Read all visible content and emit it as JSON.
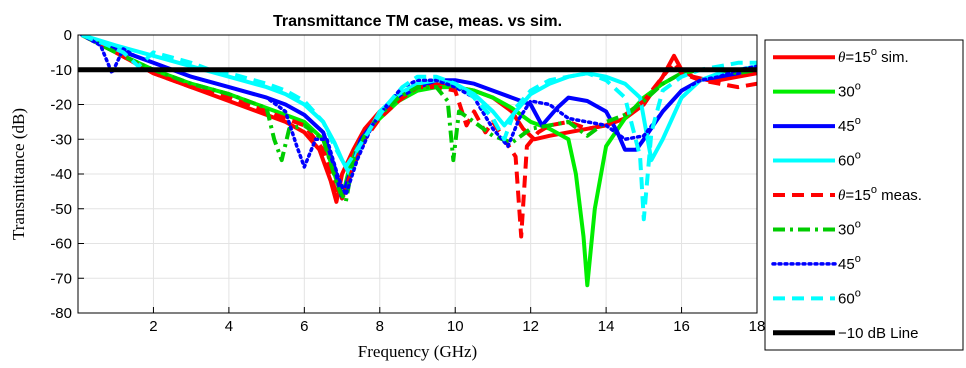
{
  "chart_data": {
    "type": "line",
    "title": "Transmittance TM case, meas. vs sim.",
    "xlabel": "Frequency (GHz)",
    "ylabel": "Transmittance (dB)",
    "xlim": [
      0,
      18
    ],
    "ylim": [
      -80,
      0
    ],
    "xticks": [
      2,
      4,
      6,
      8,
      10,
      12,
      14,
      16,
      18
    ],
    "yticks": [
      0,
      -10,
      -20,
      -30,
      -40,
      -50,
      -60,
      -70,
      -80
    ],
    "grid": true,
    "legend_position": "outside-right",
    "series": [
      {
        "name": "θ=15° sim.",
        "legend_prefix": "θ",
        "legend_text": "=15",
        "legend_sup": "o",
        "legend_suffix": " sim.",
        "color": "#ff0000",
        "style": "solid",
        "x": [
          0.1,
          1,
          2,
          3,
          4,
          5,
          5.5,
          6,
          6.4,
          6.7,
          6.85,
          7.0,
          7.3,
          7.6,
          8,
          8.5,
          9,
          9.5,
          10,
          10.5,
          11,
          11.5,
          11.8,
          12.1,
          12.5,
          13,
          13.5,
          14,
          14.5,
          15,
          15.5,
          15.8,
          16,
          16.3,
          16.7,
          17,
          17.5,
          18
        ],
        "y": [
          0,
          -5,
          -11,
          -15,
          -19,
          -23,
          -25,
          -28,
          -33,
          -42,
          -48,
          -40,
          -33,
          -27,
          -22,
          -18,
          -15,
          -14,
          -15,
          -16,
          -18,
          -22,
          -27,
          -30,
          -29,
          -28,
          -27,
          -26,
          -24,
          -20,
          -12,
          -6,
          -10,
          -12,
          -13,
          -13,
          -12,
          -11
        ]
      },
      {
        "name": "30° sim.",
        "legend_prefix": "",
        "legend_text": "30",
        "legend_sup": "o",
        "legend_suffix": "",
        "color": "#00ee00",
        "style": "solid",
        "x": [
          0.1,
          1,
          2,
          3,
          4,
          5,
          5.5,
          6,
          6.5,
          6.8,
          7.0,
          7.2,
          7.5,
          8,
          8.5,
          9,
          9.5,
          10,
          10.5,
          11,
          11.5,
          12,
          12.5,
          13,
          13.2,
          13.4,
          13.5,
          13.7,
          14,
          14.5,
          15,
          15.5,
          16,
          16.5,
          17,
          17.5,
          18
        ],
        "y": [
          0,
          -5,
          -10,
          -14,
          -17,
          -21,
          -23,
          -25,
          -30,
          -40,
          -47,
          -38,
          -30,
          -24,
          -19,
          -16,
          -15,
          -15,
          -16,
          -18,
          -21,
          -25,
          -27,
          -30,
          -40,
          -58,
          -72,
          -50,
          -32,
          -24,
          -18,
          -14,
          -11,
          -10,
          -10,
          -10,
          -10
        ]
      },
      {
        "name": "45° sim.",
        "legend_prefix": "",
        "legend_text": "45",
        "legend_sup": "o",
        "legend_suffix": "",
        "color": "#0000ff",
        "style": "solid",
        "x": [
          0.1,
          1,
          2,
          3,
          4,
          5,
          5.5,
          6,
          6.5,
          6.8,
          7.0,
          7.2,
          7.5,
          8,
          8.5,
          9,
          9.5,
          10,
          10.5,
          11,
          11.5,
          12,
          12.3,
          12.7,
          13,
          13.5,
          14,
          14.3,
          14.5,
          14.8,
          15,
          15.5,
          16,
          16.5,
          17,
          17.5,
          18
        ],
        "y": [
          0,
          -4,
          -8,
          -12,
          -15,
          -18,
          -20,
          -23,
          -28,
          -38,
          -47,
          -40,
          -30,
          -23,
          -18,
          -15,
          -13,
          -13,
          -14,
          -16,
          -18,
          -20,
          -26,
          -21,
          -18,
          -19,
          -22,
          -28,
          -33,
          -33,
          -30,
          -22,
          -16,
          -13,
          -12,
          -11,
          -9
        ]
      },
      {
        "name": "60° sim.",
        "legend_prefix": "",
        "legend_text": "60",
        "legend_sup": "o",
        "legend_suffix": "",
        "color": "#00ffff",
        "style": "solid",
        "x": [
          0.1,
          1,
          2,
          3,
          4,
          5,
          5.5,
          6,
          6.5,
          6.8,
          7.0,
          7.2,
          7.4,
          7.7,
          8,
          8.5,
          9,
          9.5,
          10,
          10.5,
          11,
          11.3,
          11.6,
          12,
          12.5,
          13,
          13.5,
          14,
          14.5,
          14.9,
          15.2,
          15.5,
          16,
          16.5,
          17,
          17.5,
          18
        ],
        "y": [
          0,
          -3,
          -6,
          -9,
          -12,
          -15,
          -17,
          -20,
          -25,
          -31,
          -36,
          -40,
          -34,
          -28,
          -22,
          -17,
          -14,
          -13,
          -14,
          -17,
          -22,
          -26,
          -22,
          -17,
          -14,
          -12,
          -11,
          -12,
          -14,
          -18,
          -36,
          -30,
          -18,
          -13,
          -11,
          -10,
          -9
        ]
      },
      {
        "name": "θ=15° meas.",
        "legend_prefix": "θ",
        "legend_text": "=15",
        "legend_sup": "o",
        "legend_suffix": " meas.",
        "color": "#ff0000",
        "style": "dashed",
        "x": [
          0.1,
          1,
          2,
          3,
          4,
          5,
          5.5,
          6,
          6.5,
          6.8,
          7.0,
          7.3,
          7.6,
          8,
          8.5,
          9,
          9.5,
          10,
          10.3,
          10.5,
          10.8,
          11,
          11.3,
          11.6,
          11.75,
          11.9,
          12.2,
          12.5,
          13,
          13.5,
          14,
          14.5,
          15,
          15.5,
          15.8,
          16,
          16.5,
          17,
          17.5,
          18
        ],
        "y": [
          0,
          -5,
          -11,
          -15,
          -18,
          -22,
          -24,
          -26,
          -33,
          -44,
          -47,
          -38,
          -30,
          -24,
          -19,
          -15,
          -15,
          -16,
          -26,
          -22,
          -28,
          -25,
          -30,
          -35,
          -58,
          -32,
          -28,
          -26,
          -25,
          -27,
          -26,
          -23,
          -19,
          -12,
          -8,
          -11,
          -13,
          -14,
          -15,
          -14
        ]
      },
      {
        "name": "30° meas.",
        "legend_prefix": "",
        "legend_text": "30",
        "legend_sup": "o",
        "legend_suffix": "",
        "color": "#00cc00",
        "style": "dashdot",
        "x": [
          0.1,
          1,
          2,
          3,
          4,
          5,
          5.2,
          5.4,
          5.6,
          6,
          6.5,
          6.9,
          7.1,
          7.3,
          7.6,
          8,
          8.5,
          9,
          9.5,
          9.8,
          9.95,
          10.1,
          10.5,
          11,
          11.5,
          12,
          12.5,
          13,
          13.5,
          14,
          14.5,
          15,
          15.5,
          16,
          16.5,
          17,
          17.5,
          18
        ],
        "y": [
          0,
          -5,
          -10,
          -14,
          -17,
          -21,
          -30,
          -36,
          -27,
          -26,
          -30,
          -44,
          -48,
          -36,
          -29,
          -23,
          -18,
          -15,
          -15,
          -19,
          -36,
          -22,
          -25,
          -29,
          -31,
          -27,
          -26,
          -25,
          -29,
          -25,
          -23,
          -19,
          -14,
          -11,
          -10,
          -10,
          -11,
          -10
        ]
      },
      {
        "name": "45° meas.",
        "legend_prefix": "",
        "legend_text": "45",
        "legend_sup": "o",
        "legend_suffix": "",
        "color": "#0000ff",
        "style": "dotted",
        "x": [
          0.1,
          0.6,
          0.9,
          1.2,
          1.5,
          2,
          3,
          4,
          5,
          5.5,
          5.8,
          6.0,
          6.3,
          6.6,
          6.9,
          7.1,
          7.4,
          7.8,
          8.2,
          8.6,
          9,
          9.5,
          10,
          10.5,
          11,
          11.4,
          11.7,
          12,
          12.5,
          13,
          13.5,
          14,
          14.5,
          15,
          15.5,
          16,
          16.5,
          17,
          17.5,
          18
        ],
        "y": [
          0,
          -3,
          -11,
          -4,
          -6,
          -8,
          -12,
          -15,
          -18,
          -22,
          -32,
          -38,
          -30,
          -30,
          -41,
          -46,
          -36,
          -26,
          -20,
          -15,
          -13,
          -13,
          -15,
          -18,
          -27,
          -32,
          -24,
          -19,
          -20,
          -24,
          -25,
          -26,
          -30,
          -29,
          -22,
          -16,
          -13,
          -12,
          -10,
          -9
        ]
      },
      {
        "name": "60° meas.",
        "legend_prefix": "",
        "legend_text": "60",
        "legend_sup": "o",
        "legend_suffix": "",
        "color": "#00ffff",
        "style": "dashed",
        "x": [
          0.1,
          0.8,
          1.2,
          1.6,
          2,
          3,
          3.5,
          4,
          5,
          5.5,
          6,
          6.5,
          6.8,
          7.1,
          7.4,
          7.8,
          8.2,
          8.6,
          9,
          9.5,
          10,
          10.5,
          11,
          11.3,
          11.6,
          12,
          12.5,
          13,
          13.5,
          14,
          14.5,
          14.9,
          15.0,
          15.2,
          15.5,
          16,
          16.5,
          17,
          17.5,
          18
        ],
        "y": [
          0,
          -3,
          -5,
          -9,
          -5,
          -8,
          -10,
          -11,
          -14,
          -16,
          -19,
          -25,
          -32,
          -38,
          -33,
          -26,
          -20,
          -15,
          -12,
          -12,
          -14,
          -18,
          -24,
          -30,
          -21,
          -16,
          -13,
          -12,
          -11,
          -13,
          -18,
          -35,
          -53,
          -28,
          -16,
          -12,
          -10,
          -9,
          -8,
          -8
        ]
      },
      {
        "name": "−10 dB Line",
        "legend_prefix": "",
        "legend_text": "−10 dB Line",
        "legend_sup": "",
        "legend_suffix": "",
        "color": "#000000",
        "style": "solid-thick",
        "x": [
          0,
          18
        ],
        "y": [
          -10,
          -10
        ]
      }
    ]
  }
}
